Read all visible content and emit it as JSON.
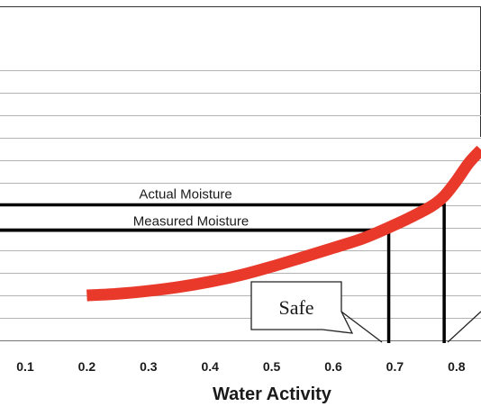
{
  "chart_data": {
    "type": "line",
    "title": "",
    "xlabel": "Water Activity",
    "ylabel": "",
    "xlim": [
      0.0,
      0.85
    ],
    "x_ticks": [
      "0.1",
      "0.2",
      "0.3",
      "0.4",
      "0.5",
      "0.6",
      "0.7",
      "0.8"
    ],
    "grid": true,
    "series": [
      {
        "color": "#e8392a",
        "x": [
          0.2,
          0.25,
          0.3,
          0.35,
          0.4,
          0.45,
          0.5,
          0.55,
          0.6,
          0.65,
          0.7,
          0.73,
          0.76,
          0.78,
          0.8,
          0.82,
          0.84
        ],
        "y": [
          2.0,
          2.07,
          2.2,
          2.38,
          2.62,
          2.92,
          3.3,
          3.72,
          4.15,
          4.6,
          5.2,
          5.6,
          6.05,
          6.5,
          7.2,
          8.0,
          8.6
        ]
      }
    ],
    "annotations": {
      "actual": {
        "label": "Actual Moisture",
        "x": 0.78,
        "y": 6.1
      },
      "measured": {
        "label": "Measured Moisture",
        "x": 0.69,
        "y": 4.95
      },
      "callout": {
        "label": "Safe"
      }
    }
  },
  "colors": {
    "curve": "#e8392a",
    "grid": "#b3b3b3",
    "lines": "#000000"
  }
}
